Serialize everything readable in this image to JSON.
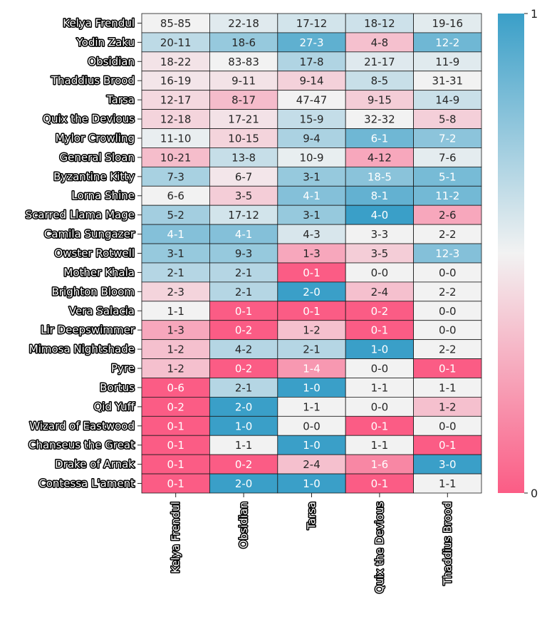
{
  "chart_data": {
    "type": "heatmap",
    "rows": [
      "Kelya Frendul",
      "Yodin Zaku",
      "Obsidian",
      "Thaddius Brood",
      "Tarsa",
      "Quix the Devious",
      "Mylor Crowling",
      "General Sloan",
      "Byzantine Kitty",
      "Lorna Shine",
      "Scarred Llama Mage",
      "Camila Sungazer",
      "Owster Rotwell",
      "Mother Khala",
      "Brighton Bloom",
      "Vera Salacia",
      "Lir Deepswimmer",
      "Mimosa Nightshade",
      "Pyre",
      "Bortus",
      "Qid Yuff",
      "Wizard of Eastwood",
      "Chanseus the Great",
      "Drake of Arnak",
      "Contessa L'ament"
    ],
    "columns": [
      "Kelya Frendul",
      "Obsidian",
      "Tarsa",
      "Quix the Devious",
      "Thaddius Brood"
    ],
    "cells": [
      [
        "85-85",
        "22-18",
        "17-12",
        "18-12",
        "19-16"
      ],
      [
        "20-11",
        "18-6",
        "27-3",
        "4-8",
        "12-2"
      ],
      [
        "18-22",
        "83-83",
        "17-8",
        "21-17",
        "11-9"
      ],
      [
        "16-19",
        "9-11",
        "9-14",
        "8-5",
        "31-31"
      ],
      [
        "12-17",
        "8-17",
        "47-47",
        "9-15",
        "14-9"
      ],
      [
        "12-18",
        "17-21",
        "15-9",
        "32-32",
        "5-8"
      ],
      [
        "11-10",
        "10-15",
        "9-4",
        "6-1",
        "7-2"
      ],
      [
        "10-21",
        "13-8",
        "10-9",
        "4-12",
        "7-6"
      ],
      [
        "7-3",
        "6-7",
        "3-1",
        "18-5",
        "5-1"
      ],
      [
        "6-6",
        "3-5",
        "4-1",
        "8-1",
        "11-2"
      ],
      [
        "5-2",
        "17-12",
        "3-1",
        "4-0",
        "2-6"
      ],
      [
        "4-1",
        "4-1",
        "4-3",
        "3-3",
        "2-2"
      ],
      [
        "3-1",
        "9-3",
        "1-3",
        "3-5",
        "12-3"
      ],
      [
        "2-1",
        "2-1",
        "0-1",
        "0-0",
        "0-0"
      ],
      [
        "2-3",
        "2-1",
        "2-0",
        "2-4",
        "2-2"
      ],
      [
        "1-1",
        "0-1",
        "0-1",
        "0-2",
        "0-0"
      ],
      [
        "1-3",
        "0-2",
        "1-2",
        "0-1",
        "0-0"
      ],
      [
        "1-2",
        "4-2",
        "2-1",
        "1-0",
        "2-2"
      ],
      [
        "1-2",
        "0-2",
        "1-4",
        "0-0",
        "0-1"
      ],
      [
        "0-6",
        "2-1",
        "1-0",
        "1-1",
        "1-1"
      ],
      [
        "0-2",
        "2-0",
        "1-1",
        "0-0",
        "1-2"
      ],
      [
        "0-1",
        "1-0",
        "0-0",
        "0-1",
        "0-0"
      ],
      [
        "0-1",
        "1-1",
        "1-0",
        "1-1",
        "0-1"
      ],
      [
        "0-1",
        "0-2",
        "2-4",
        "1-6",
        "3-0"
      ],
      [
        "0-1",
        "2-0",
        "1-0",
        "0-1",
        "1-1"
      ]
    ],
    "colorbar": {
      "min": 0,
      "max": 1,
      "ticks": [
        "0",
        "1"
      ]
    },
    "colors": {
      "low": "#fb5c85",
      "mid": "#f2f2f2",
      "high": "#3a9fc8"
    },
    "grid": true
  }
}
